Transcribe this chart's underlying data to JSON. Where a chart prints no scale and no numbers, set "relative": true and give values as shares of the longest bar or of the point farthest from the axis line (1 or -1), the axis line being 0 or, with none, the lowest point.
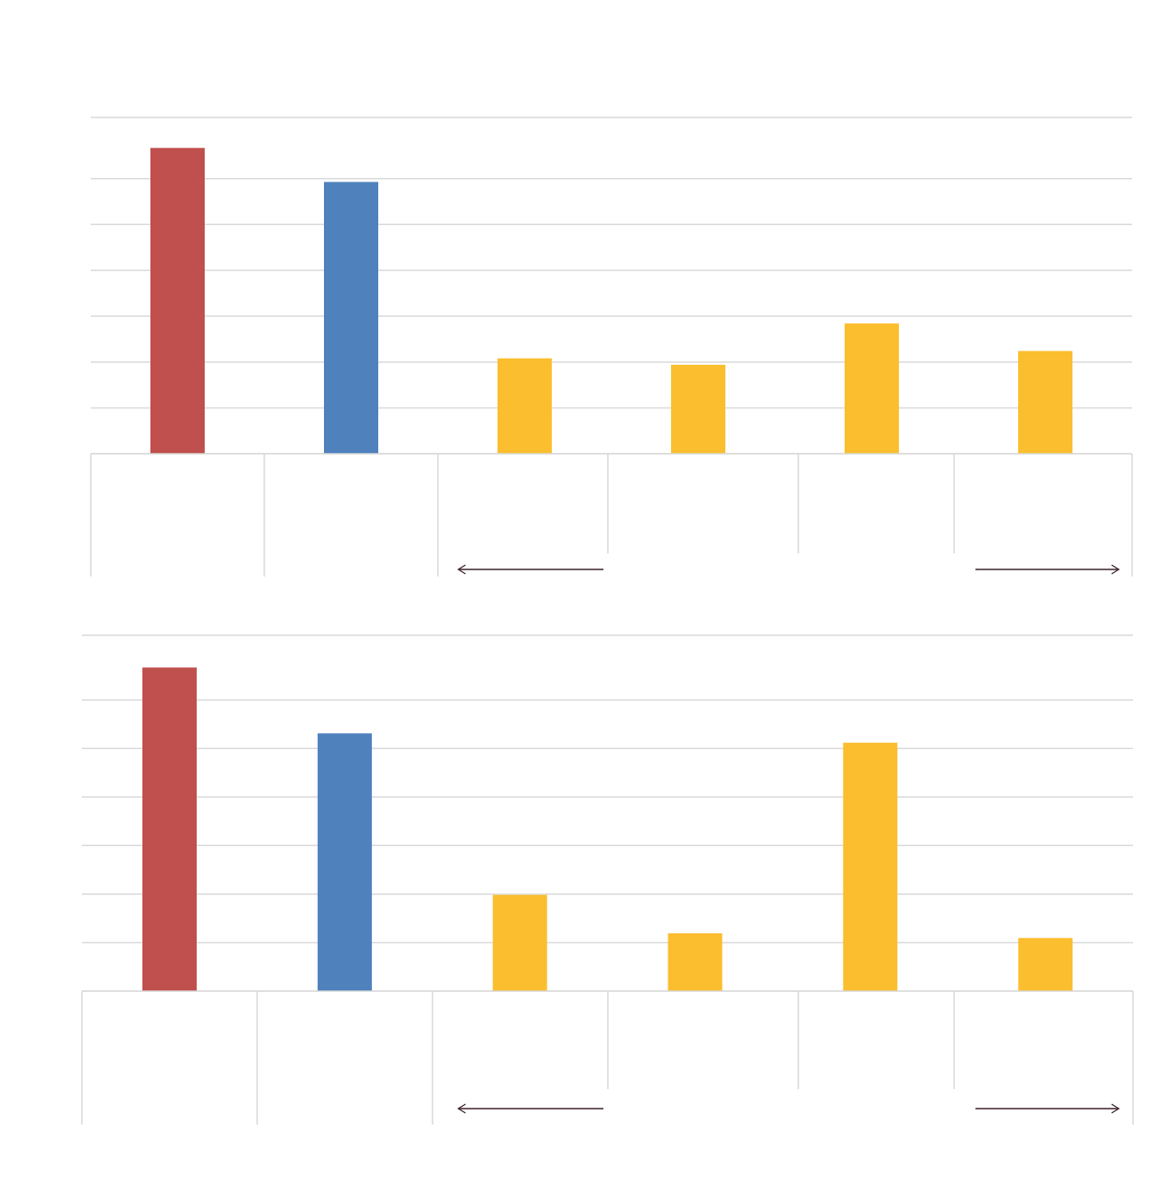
{
  "chart_data": [
    {
      "type": "bar",
      "relative": true,
      "categories": [
        null,
        null,
        null,
        null,
        null,
        null
      ],
      "values": [
        1,
        0.889,
        0.312,
        0.291,
        0.426,
        0.336
      ],
      "colors": [
        "#c0504d",
        "#4f81bd",
        "#fbbe2e",
        "#fbbe2e",
        "#fbbe2e",
        "#fbbe2e"
      ],
      "grid": "y"
    },
    {
      "type": "bar",
      "relative": true,
      "categories": [
        null,
        null,
        null,
        null,
        null,
        null
      ],
      "values": [
        1,
        0.797,
        0.298,
        0.179,
        0.768,
        0.164
      ],
      "colors": [
        "#c0504d",
        "#4f81bd",
        "#fbbe2e",
        "#fbbe2e",
        "#fbbe2e",
        "#fbbe2e"
      ],
      "grid": "y"
    }
  ]
}
